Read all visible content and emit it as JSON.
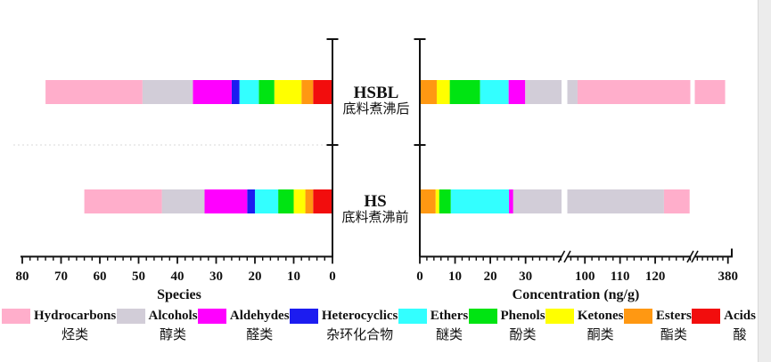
{
  "figure": {
    "row_labels": [
      {
        "id": "HSBL",
        "en": "HSBL",
        "zh": "底料煮沸后"
      },
      {
        "id": "HS",
        "en": "HS",
        "zh": "底料煮沸前"
      }
    ],
    "colors": {
      "axis": "#111111",
      "tick_label": "#111111",
      "dashed_line": "#d9d9d9",
      "background": "#ffffff",
      "margin_strip": "#ececec"
    }
  },
  "categories": [
    {
      "key": "hydrocarbons",
      "en": "Hydrocarbons",
      "zh": "烃类",
      "color": "#ffaecb"
    },
    {
      "key": "alcohols",
      "en": "Alcohols",
      "zh": "醇类",
      "color": "#d2cdd8"
    },
    {
      "key": "aldehydes",
      "en": "Aldehydes",
      "zh": "醛类",
      "color": "#ff00ff"
    },
    {
      "key": "heterocyclics",
      "en": "Heterocyclics",
      "zh": "杂环化合物",
      "color": "#1c1cf0"
    },
    {
      "key": "ethers",
      "en": "Ethers",
      "zh": "醚类",
      "color": "#33ffff"
    },
    {
      "key": "phenols",
      "en": "Phenols",
      "zh": "酚类",
      "color": "#00e412"
    },
    {
      "key": "ketones",
      "en": "Ketones",
      "zh": "酮类",
      "color": "#ffff00"
    },
    {
      "key": "esters",
      "en": "Esters",
      "zh": "酯类",
      "color": "#ff9812"
    },
    {
      "key": "acids",
      "en": "Acids",
      "zh": "酸",
      "color": "#f20d0d"
    }
  ],
  "chart_data": [
    {
      "type": "bar",
      "panel": "left",
      "orientation": "horizontal_stacked",
      "xlabel": "Species",
      "x_reversed": true,
      "categories": [
        "HSBL",
        "HS"
      ],
      "axis": {
        "min": 0,
        "max": 80,
        "major_ticks": [
          80,
          70,
          60,
          50,
          40,
          30,
          20,
          10,
          0
        ],
        "minor_step": 2
      },
      "stack_order": "reversed_legend",
      "series": [
        {
          "name": "Hydrocarbons",
          "values": [
            25,
            20
          ]
        },
        {
          "name": "Alcohols",
          "values": [
            13,
            11
          ]
        },
        {
          "name": "Aldehydes",
          "values": [
            10,
            11
          ]
        },
        {
          "name": "Heterocyclics",
          "values": [
            2,
            2
          ]
        },
        {
          "name": "Ethers",
          "values": [
            5,
            6
          ]
        },
        {
          "name": "Phenols",
          "values": [
            4,
            4
          ]
        },
        {
          "name": "Ketones",
          "values": [
            7,
            3
          ]
        },
        {
          "name": "Esters",
          "values": [
            3,
            2
          ]
        },
        {
          "name": "Acids",
          "values": [
            5,
            5
          ]
        }
      ]
    },
    {
      "type": "bar",
      "panel": "right",
      "orientation": "horizontal_stacked",
      "xlabel": "Concentration (ng/g)",
      "x_reversed": false,
      "categories": [
        "HSBL",
        "HS"
      ],
      "axis": {
        "min": 0,
        "max": 381,
        "major_ticks": [
          0,
          10,
          20,
          30,
          100,
          110,
          120,
          380
        ],
        "minor_step": 2,
        "breaks": [
          [
            40.2,
            95
          ],
          [
            130,
            367
          ]
        ]
      },
      "stack_order": "reversed_legend",
      "series": [
        {
          "name": "Hydrocarbons",
          "values": [
            281,
            7.3
          ]
        },
        {
          "name": "Alcohols",
          "values": [
            68,
            96
          ]
        },
        {
          "name": "Aldehydes",
          "values": [
            4.7,
            1.2
          ]
        },
        {
          "name": "Heterocyclics",
          "values": [
            0,
            0
          ]
        },
        {
          "name": "Ethers",
          "values": [
            8.1,
            16.5
          ]
        },
        {
          "name": "Phenols",
          "values": [
            8.6,
            3.3
          ]
        },
        {
          "name": "Ketones",
          "values": [
            3.7,
            1.0
          ]
        },
        {
          "name": "Esters",
          "values": [
            4.8,
            4.5
          ]
        },
        {
          "name": "Acids",
          "values": [
            0,
            0
          ]
        }
      ]
    }
  ],
  "legend": {
    "position": "bottom"
  }
}
